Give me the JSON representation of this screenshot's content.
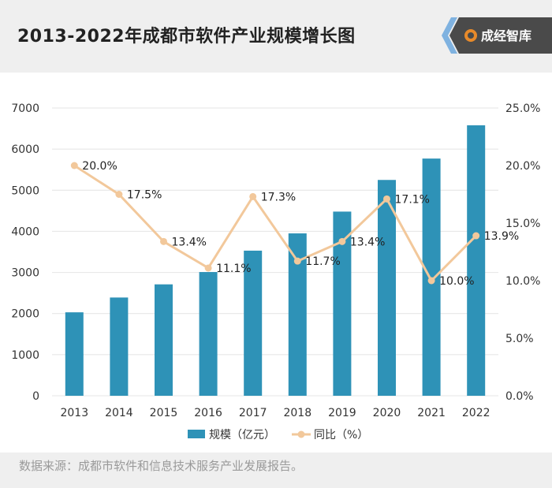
{
  "header": {
    "title": "2013-2022年成都市软件产业规模增长图",
    "logo_text": "成经智库"
  },
  "footer": {
    "source": "数据来源：成都市软件和信息技术服务产业发展报告。"
  },
  "colors": {
    "bar": "#2e92b7",
    "line": "#f2c89b",
    "logo_accent": "#4a8fd0",
    "logo_bg": "#4a4a4a"
  },
  "chart_data": {
    "type": "bar+line",
    "categories": [
      "2013",
      "2014",
      "2015",
      "2016",
      "2017",
      "2018",
      "2019",
      "2020",
      "2021",
      "2022"
    ],
    "series": [
      {
        "name": "规模（亿元）",
        "type": "bar",
        "axis": "left",
        "values": [
          2030,
          2390,
          2710,
          3010,
          3530,
          3950,
          4480,
          5250,
          5770,
          6580
        ]
      },
      {
        "name": "同比（%）",
        "type": "line",
        "axis": "right",
        "values": [
          20.0,
          17.5,
          13.4,
          11.1,
          17.3,
          11.7,
          13.4,
          17.1,
          10.0,
          13.9
        ],
        "labels": [
          "20.0%",
          "17.5%",
          "13.4%",
          "11.1%",
          "17.3%",
          "11.7%",
          "13.4%",
          "17.1%",
          "10.0%",
          "13.9%"
        ]
      }
    ],
    "y_left": {
      "min": 0,
      "max": 7000,
      "ticks": [
        "0",
        "1000",
        "2000",
        "3000",
        "4000",
        "5000",
        "6000",
        "7000"
      ]
    },
    "y_right": {
      "min": 0,
      "max": 25,
      "ticks": [
        "0.0%",
        "5.0%",
        "10.0%",
        "15.0%",
        "20.0%",
        "25.0%"
      ]
    },
    "legend": [
      "规模（亿元）",
      "同比（%）"
    ],
    "legend_position": "bottom",
    "grid": true
  }
}
